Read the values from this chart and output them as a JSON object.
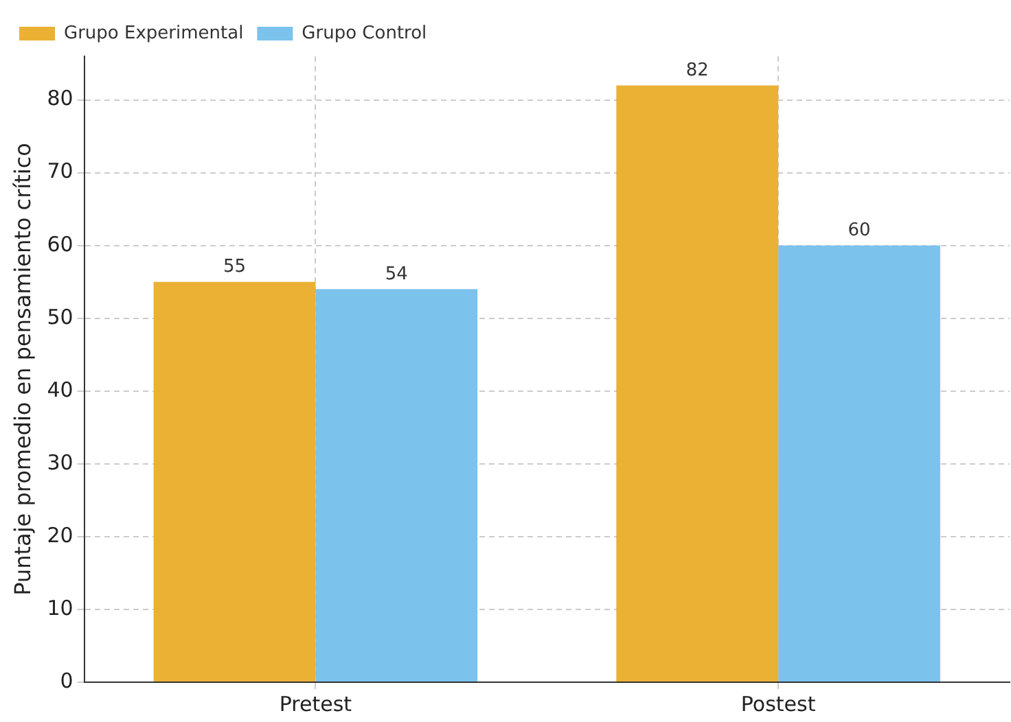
{
  "chart_data": {
    "type": "bar",
    "ylabel": "Puntaje promedio en pensamiento crítico",
    "categories": [
      "Pretest",
      "Postest"
    ],
    "series": [
      {
        "name": "Grupo Experimental",
        "color": "#eab134",
        "values": [
          55,
          82
        ]
      },
      {
        "name": "Grupo Control",
        "color": "#7bc3ec",
        "values": [
          54,
          60
        ]
      }
    ],
    "ylim": [
      0,
      86
    ],
    "yticks": [
      0,
      10,
      20,
      30,
      40,
      50,
      60,
      70,
      80
    ],
    "grid": true,
    "legend": "top left",
    "data_labels": true
  }
}
